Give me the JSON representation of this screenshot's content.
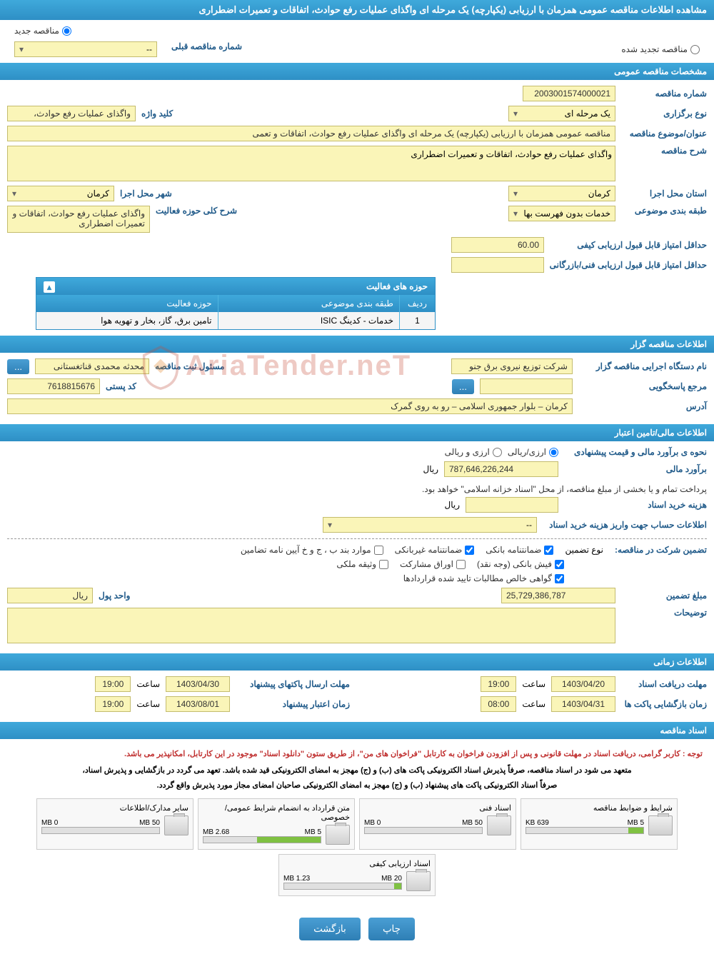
{
  "page_title": "مشاهده اطلاعات مناقصه عمومی همزمان با ارزیابی (یکپارچه) یک مرحله ای واگذای عملیات رفع حوادث، اتفاقات و تعمیرات اضطراری",
  "radio": {
    "new": "مناقصه جدید",
    "renew": "مناقصه تجدید شده",
    "prev_label": "شماره مناقصه قبلی",
    "prev_value": "--"
  },
  "sections": {
    "general": "مشخصات مناقصه عمومی",
    "organizer": "اطلاعات مناقصه گزار",
    "finance": "اطلاعات مالی/تامین اعتبار",
    "time": "اطلاعات زمانی",
    "docs": "اسناد مناقصه"
  },
  "general": {
    "tender_no_label": "شماره مناقصه",
    "tender_no": "2003001574000021",
    "hold_type_label": "نوع برگزاری",
    "hold_type": "یک مرحله ای",
    "keyword_label": "کلید واژه",
    "keyword": "واگذای عملیات رفع حوادث،",
    "title_label": "عنوان/موضوع مناقصه",
    "title": "مناقصه عمومی همزمان با ارزیابی (یکپارچه) یک مرحله ای واگذای عملیات رفع حوادث، اتفاقات و تعمی",
    "desc_label": "شرح مناقصه",
    "desc": "واگذای عملیات رفع حوادث، اتفاقات و تعمیرات اضطراری",
    "province_label": "استان محل اجرا",
    "province": "کرمان",
    "city_label": "شهر محل اجرا",
    "city": "کرمان",
    "category_label": "طبقه بندی موضوعی",
    "category": "خدمات بدون فهرست بها",
    "act_desc_label": "شرح کلی حوزه فعالیت",
    "act_desc": "واگذای عملیات رفع حوادث، اتفاقات و تعمیرات اضطراری",
    "min_quality_label": "حداقل امتیاز قابل قبول ارزیابی کیفی",
    "min_quality": "60.00",
    "min_tech_label": "حداقل امتیاز قابل قبول ارزیابی فنی/بازرگانی",
    "min_tech": ""
  },
  "activity_table": {
    "header": "حوزه های فعالیت",
    "col_num": "ردیف",
    "col_cat": "طبقه بندی موضوعی",
    "col_act": "حوزه فعالیت",
    "rows": [
      {
        "n": "1",
        "cat": "خدمات - کدینگ ISIC",
        "act": "تامین برق، گاز، بخار و تهویه هوا"
      }
    ]
  },
  "organizer": {
    "exec_label": "نام دستگاه اجرایی مناقصه گزار",
    "exec": "شرکت توزیع نیروی برق جنو",
    "reg_label": "مسئول ثبت مناقصه",
    "reg": "محدثه محمدی قناتغستانی",
    "respond_label": "مرجع پاسخگویی",
    "respond": "",
    "postal_label": "کد پستی",
    "postal": "7618815676",
    "address_label": "آدرس",
    "address": "کرمان – بلوار جمهوری اسلامی – رو به روی گمرک",
    "btn_more": "..."
  },
  "finance": {
    "method_label": "نحوه ی برآورد مالی و قیمت پیشنهادی",
    "opt_rial": "ارزی/ریالی",
    "opt_curr": "ارزی و ریالی",
    "estimate_label": "برآورد مالی",
    "estimate": "787,646,226,244",
    "unit": "ریال",
    "note": "پرداخت تمام و یا بخشی از مبلغ مناقصه، از محل \"اسناد خزانه اسلامی\" خواهد بود.",
    "doc_cost_label": "هزینه خرید اسناد",
    "doc_cost": "",
    "account_label": "اطلاعات حساب جهت واریز هزینه خرید اسناد",
    "account": "--",
    "guarantee_label": "تضمین شرکت در مناقصه:",
    "guarantee_type": "نوع تضمین",
    "g1": "ضمانتنامه بانکی",
    "g2": "ضمانتنامه غیربانکی",
    "g3": "موارد بند ب ، ج و خ آیین نامه تضامین",
    "g4": "فیش بانکی (وجه نقد)",
    "g5": "اوراق مشارکت",
    "g6": "وثیقه ملکی",
    "g7": "گواهی خالص مطالبات تایید شده قراردادها",
    "g_amount_label": "مبلغ تضمین",
    "g_amount": "25,729,386,787",
    "g_unit_label": "واحد پول",
    "g_unit": "ریال",
    "g_notes_label": "توضیحات",
    "g_notes": ""
  },
  "time": {
    "doc_deadline_label": "مهلت دریافت اسناد",
    "doc_deadline_date": "1403/04/20",
    "doc_deadline_time_label": "ساعت",
    "doc_deadline_time": "19:00",
    "send_deadline_label": "مهلت ارسال پاکتهای پیشنهاد",
    "send_deadline_date": "1403/04/30",
    "send_deadline_time": "19:00",
    "open_label": "زمان بازگشایی پاکت ها",
    "open_date": "1403/04/31",
    "open_time": "08:00",
    "valid_label": "زمان اعتبار پیشنهاد",
    "valid_date": "1403/08/01",
    "valid_time": "19:00"
  },
  "docs": {
    "note1": "توجه : کاربر گرامی، دریافت اسناد در مهلت قانونی و پس از افزودن فراخوان به کارتابل \"فراخوان های من\"، از طریق ستون \"دانلود اسناد\" موجود در این کارتابل، امکانپذیر می باشد.",
    "note2": "متعهد می شود در اسناد مناقصه، صرفاً پذیرش اسناد الکترونیکی پاکت های (ب) و (ج) مهجز به امضای الکترونیکی قید شده باشد. تعهد می گردد در بازگشایی و پذیرش اسناد،",
    "note3": "صرفاً اسناد الکترونیکی پاکت های پیشنهاد (ب) و (ج) مهجز به امضای الکترونیکی صاحبان امضای مجاز مورد پذیرش واقع گردد.",
    "items": [
      {
        "title": "شرایط و ضوابط مناقصه",
        "used": "639 KB",
        "max": "5 MB",
        "pct": 13
      },
      {
        "title": "اسناد فنی",
        "used": "0 MB",
        "max": "50 MB",
        "pct": 0
      },
      {
        "title": "متن قرارداد به انضمام شرایط عمومی/خصوصی",
        "used": "2.68 MB",
        "max": "5 MB",
        "pct": 54
      },
      {
        "title": "سایر مدارک/اطلاعات",
        "used": "0 MB",
        "max": "50 MB",
        "pct": 0
      },
      {
        "title": "اسناد ارزیابی کیفی",
        "used": "1.23 MB",
        "max": "20 MB",
        "pct": 6
      }
    ]
  },
  "buttons": {
    "print": "چاپ",
    "back": "بازگشت"
  },
  "watermark": "AriaTender.neT"
}
